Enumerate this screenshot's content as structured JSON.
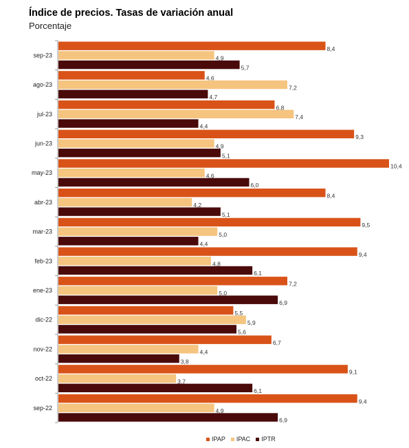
{
  "title": "Índice de precios. Tasas de variación anual",
  "subtitle": "Porcentaje",
  "colors": {
    "IPAP": "#d95319",
    "IPAC": "#f5c47f",
    "IPTR": "#4a0a0a",
    "axis": "#999999",
    "grid": "#d0d0d0"
  },
  "chart_data": {
    "type": "bar",
    "orientation": "horizontal",
    "title": "Índice de precios. Tasas de variación anual",
    "subtitle": "Porcentaje",
    "categories": [
      "sep-23",
      "ago-23",
      "jul-23",
      "jun-23",
      "may-23",
      "abr-23",
      "mar-23",
      "feb-23",
      "ene-23",
      "dic-22",
      "nov-22",
      "oct-22",
      "sep-22"
    ],
    "series": [
      {
        "name": "IPAP",
        "values": [
          8.4,
          4.6,
          6.8,
          9.3,
          10.4,
          8.4,
          9.5,
          9.4,
          7.2,
          5.5,
          6.7,
          9.1,
          9.4
        ],
        "labels": [
          "8,4",
          "4,6",
          "6,8",
          "9,3",
          "10,4",
          "8,4",
          "9,5",
          "9,4",
          "7,2",
          "5,5",
          "6,7",
          "9,1",
          "9,4"
        ]
      },
      {
        "name": "IPAC",
        "values": [
          4.9,
          7.2,
          7.4,
          4.9,
          4.6,
          4.2,
          5.0,
          4.8,
          5.0,
          5.9,
          4.4,
          3.7,
          4.9
        ],
        "labels": [
          "4,9",
          "7,2",
          "7,4",
          "4,9",
          "4,6",
          "4,2",
          "5,0",
          "4,8",
          "5,0",
          "5,9",
          "4,4",
          "3,7",
          "4,9"
        ]
      },
      {
        "name": "IPTR",
        "values": [
          5.7,
          4.7,
          4.4,
          5.1,
          6.0,
          5.1,
          4.4,
          6.1,
          6.9,
          5.6,
          3.8,
          6.1,
          6.9
        ],
        "labels": [
          "5,7",
          "4,7",
          "4,4",
          "5,1",
          "6,0",
          "5,1",
          "4,4",
          "6,1",
          "6,9",
          "5,6",
          "3,8",
          "6,1",
          "6,9"
        ]
      }
    ],
    "xlim": [
      0,
      10.4
    ],
    "grid": false,
    "legend_position": "bottom"
  }
}
